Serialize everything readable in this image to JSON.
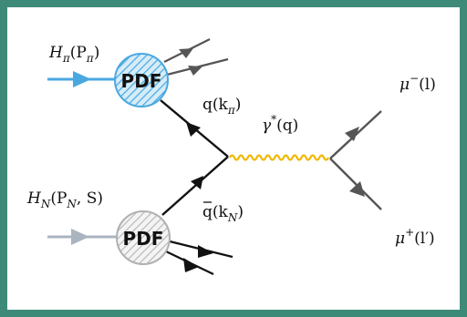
{
  "colors": {
    "frame": "#3e8a78",
    "pion_beam": "#4aa8e0",
    "nucleon_beam": "#aab4c0",
    "pion_blob_fill": "#d5ecf9",
    "pion_blob_hatch": "#4aa8e0",
    "nucleon_blob_fill": "#f2f2f2",
    "nucleon_blob_hatch": "#b8b8b8",
    "photon": "#f0b800",
    "quark": "#111111",
    "muon": "#555555",
    "spectator_pion": "#555555",
    "spectator_nucleon": "#111111"
  },
  "diagram": {
    "pion_beam_label": {
      "main": "H",
      "sub": "π",
      "args": "(P",
      "args_sub": "π",
      "close": ")"
    },
    "nucleon_beam_label": {
      "main": "H",
      "sub": "N",
      "args": "(P",
      "args_sub": "N",
      "tail": ", S)"
    },
    "pion_blob_label": "PDF",
    "nucleon_blob_label": "PDF",
    "quark_label": {
      "name": "q",
      "open": "(k",
      "sub": "π",
      "close": ")"
    },
    "antiquark_label": {
      "name": "q",
      "bar": "‾",
      "open": "(k",
      "sub": "N",
      "close": ")"
    },
    "photon_label": {
      "name": "γ",
      "sup": "*",
      "arg": "(q)"
    },
    "muon_minus_label": {
      "name": "μ",
      "sup": "−",
      "arg": "(l)"
    },
    "muon_plus_label": {
      "name": "μ",
      "sup": "+",
      "arg": "(l′)"
    },
    "icons": [
      "incoming-arrow-icon",
      "pdf-blob-icon",
      "wavy-photon-icon",
      "outgoing-arrow-icon"
    ]
  }
}
